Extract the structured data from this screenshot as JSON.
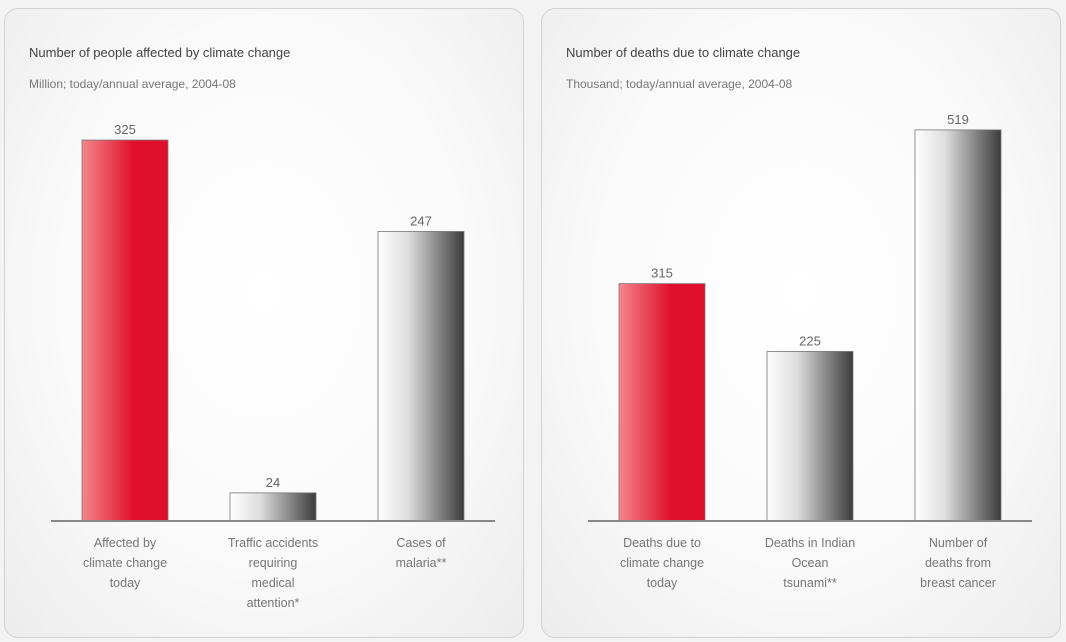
{
  "chart_data": [
    {
      "type": "bar",
      "title": "Number of people affected by climate change",
      "subtitle": "Million; today/annual average, 2004-08",
      "categories": [
        [
          "Affected by",
          "climate change",
          "today"
        ],
        [
          "Traffic accidents",
          "requiring",
          "medical",
          "attention*"
        ],
        [
          "Cases of",
          "malaria**"
        ]
      ],
      "values": [
        325,
        24,
        247
      ],
      "value_labels": [
        "325",
        "24",
        "247"
      ],
      "bar_styles": [
        "red",
        "grey",
        "grey"
      ],
      "ylim": [
        0,
        360
      ],
      "xlabel": "",
      "ylabel": ""
    },
    {
      "type": "bar",
      "title": "Number of deaths due to climate change",
      "subtitle": "Thousand; today/annual average, 2004-08",
      "categories": [
        [
          "Deaths due to",
          "climate change",
          "today"
        ],
        [
          "Deaths in Indian",
          "Ocean",
          "tsunami**"
        ],
        [
          "Number of",
          "deaths from",
          "breast cancer"
        ]
      ],
      "values": [
        315,
        225,
        519
      ],
      "value_labels": [
        "315",
        "225",
        "519"
      ],
      "bar_styles": [
        "red",
        "grey",
        "grey"
      ],
      "ylim": [
        0,
        560
      ],
      "xlabel": "",
      "ylabel": ""
    }
  ],
  "colors": {
    "red_light": "#f4858c",
    "red_dark": "#e0102c",
    "grey_light": "#ffffff",
    "grey_dark": "#3c3c3c",
    "axis": "#888888"
  }
}
